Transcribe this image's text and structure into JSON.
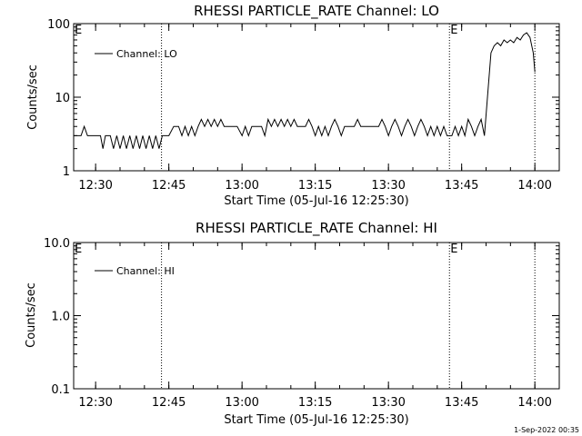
{
  "chart_data": [
    {
      "type": "line",
      "title": "RHESSI PARTICLE_RATE Channel: LO",
      "xlabel": "Start Time (05-Jul-16 12:25:30)",
      "ylabel": "Counts/sec",
      "yscale": "log",
      "ylim": [
        1,
        100
      ],
      "xlim": [
        "12:25:30",
        "14:05:00"
      ],
      "x_ticks": [
        "12:30",
        "12:45",
        "13:00",
        "13:15",
        "13:30",
        "13:45",
        "14:00"
      ],
      "y_ticks": [
        "1",
        "10",
        "100"
      ],
      "legend_label": "Channel: LO",
      "legend_position": "top-left",
      "markers": [
        {
          "label": "",
          "time": "12:43:30",
          "style": "dotted"
        },
        {
          "label": "E",
          "time": "13:42:30",
          "style": "dotted"
        },
        {
          "label": "",
          "time": "14:00:00",
          "style": "dotted"
        },
        {
          "label": "E",
          "time": "12:25:30",
          "style": "text"
        }
      ],
      "series": [
        {
          "points": [
            [
              "12:25:30",
              3
            ],
            [
              "12:27:00",
              3
            ],
            [
              "12:27:40",
              4
            ],
            [
              "12:28:20",
              3
            ],
            [
              "12:30:00",
              3
            ],
            [
              "12:31:00",
              3
            ],
            [
              "12:31:30",
              2
            ],
            [
              "12:32:00",
              3
            ],
            [
              "12:33:00",
              3
            ],
            [
              "12:33:40",
              2
            ],
            [
              "12:34:20",
              3
            ],
            [
              "12:35:00",
              2
            ],
            [
              "12:35:40",
              3
            ],
            [
              "12:36:20",
              2
            ],
            [
              "12:37:00",
              3
            ],
            [
              "12:37:40",
              2
            ],
            [
              "12:38:20",
              3
            ],
            [
              "12:39:00",
              2
            ],
            [
              "12:39:40",
              3
            ],
            [
              "12:40:20",
              2
            ],
            [
              "12:41:00",
              3
            ],
            [
              "12:41:40",
              2
            ],
            [
              "12:42:20",
              3
            ],
            [
              "12:43:00",
              2
            ],
            [
              "12:43:40",
              3
            ],
            [
              "12:45:00",
              3
            ],
            [
              "12:46:00",
              4
            ],
            [
              "12:47:00",
              4
            ],
            [
              "12:47:40",
              3
            ],
            [
              "12:48:20",
              4
            ],
            [
              "12:49:00",
              3
            ],
            [
              "12:49:40",
              4
            ],
            [
              "12:50:20",
              3
            ],
            [
              "12:51:00",
              4
            ],
            [
              "12:51:40",
              5
            ],
            [
              "12:52:20",
              4
            ],
            [
              "12:53:00",
              5
            ],
            [
              "12:53:40",
              4
            ],
            [
              "12:54:20",
              5
            ],
            [
              "12:55:00",
              4
            ],
            [
              "12:55:40",
              5
            ],
            [
              "12:56:20",
              4
            ],
            [
              "12:57:00",
              4
            ],
            [
              "12:58:00",
              4
            ],
            [
              "12:59:00",
              4
            ],
            [
              "13:00:00",
              3
            ],
            [
              "13:00:40",
              4
            ],
            [
              "13:01:20",
              3
            ],
            [
              "13:02:00",
              4
            ],
            [
              "13:03:00",
              4
            ],
            [
              "13:04:00",
              4
            ],
            [
              "13:04:40",
              3
            ],
            [
              "13:05:20",
              5
            ],
            [
              "13:06:00",
              4
            ],
            [
              "13:06:40",
              5
            ],
            [
              "13:07:20",
              4
            ],
            [
              "13:08:00",
              5
            ],
            [
              "13:08:40",
              4
            ],
            [
              "13:09:20",
              5
            ],
            [
              "13:10:00",
              4
            ],
            [
              "13:10:40",
              5
            ],
            [
              "13:11:20",
              4
            ],
            [
              "13:12:00",
              4
            ],
            [
              "13:13:00",
              4
            ],
            [
              "13:13:40",
              5
            ],
            [
              "13:14:20",
              4
            ],
            [
              "13:15:00",
              3
            ],
            [
              "13:15:40",
              4
            ],
            [
              "13:16:20",
              3
            ],
            [
              "13:17:00",
              4
            ],
            [
              "13:17:40",
              3
            ],
            [
              "13:18:20",
              4
            ],
            [
              "13:19:00",
              5
            ],
            [
              "13:19:40",
              4
            ],
            [
              "13:20:20",
              3
            ],
            [
              "13:21:00",
              4
            ],
            [
              "13:22:00",
              4
            ],
            [
              "13:23:00",
              4
            ],
            [
              "13:23:40",
              5
            ],
            [
              "13:24:20",
              4
            ],
            [
              "13:25:00",
              4
            ],
            [
              "13:26:00",
              4
            ],
            [
              "13:27:00",
              4
            ],
            [
              "13:28:00",
              4
            ],
            [
              "13:28:40",
              5
            ],
            [
              "13:29:20",
              4
            ],
            [
              "13:30:00",
              3
            ],
            [
              "13:30:40",
              4
            ],
            [
              "13:31:20",
              5
            ],
            [
              "13:32:00",
              4
            ],
            [
              "13:32:40",
              3
            ],
            [
              "13:33:20",
              4
            ],
            [
              "13:34:00",
              5
            ],
            [
              "13:34:40",
              4
            ],
            [
              "13:35:20",
              3
            ],
            [
              "13:36:00",
              4
            ],
            [
              "13:36:40",
              5
            ],
            [
              "13:37:20",
              4
            ],
            [
              "13:38:00",
              3
            ],
            [
              "13:38:40",
              4
            ],
            [
              "13:39:20",
              3
            ],
            [
              "13:40:00",
              4
            ],
            [
              "13:40:40",
              3
            ],
            [
              "13:41:20",
              4
            ],
            [
              "13:42:00",
              3
            ],
            [
              "13:43:00",
              3
            ],
            [
              "13:43:40",
              4
            ],
            [
              "13:44:20",
              3
            ],
            [
              "13:45:00",
              4
            ],
            [
              "13:45:40",
              3
            ],
            [
              "13:46:20",
              5
            ],
            [
              "13:47:00",
              4
            ],
            [
              "13:47:40",
              3
            ],
            [
              "13:48:20",
              4
            ],
            [
              "13:49:00",
              5
            ],
            [
              "13:49:40",
              3
            ],
            [
              "13:51:00",
              40
            ],
            [
              "13:51:40",
              50
            ],
            [
              "13:52:20",
              55
            ],
            [
              "13:53:00",
              50
            ],
            [
              "13:53:40",
              60
            ],
            [
              "13:54:20",
              55
            ],
            [
              "13:55:00",
              60
            ],
            [
              "13:55:40",
              55
            ],
            [
              "13:56:20",
              65
            ],
            [
              "13:57:00",
              60
            ],
            [
              "13:57:40",
              70
            ],
            [
              "13:58:20",
              75
            ],
            [
              "13:59:00",
              65
            ],
            [
              "13:59:40",
              40
            ],
            [
              "14:00:00",
              22
            ]
          ]
        }
      ]
    },
    {
      "type": "line",
      "title": "RHESSI PARTICLE_RATE Channel: HI",
      "xlabel": "Start Time (05-Jul-16 12:25:30)",
      "ylabel": "Counts/sec",
      "yscale": "log",
      "ylim": [
        0.1,
        10
      ],
      "xlim": [
        "12:25:30",
        "14:05:00"
      ],
      "x_ticks": [
        "12:30",
        "12:45",
        "13:00",
        "13:15",
        "13:30",
        "13:45",
        "14:00"
      ],
      "y_ticks": [
        "0.1",
        "1.0",
        "10.0"
      ],
      "legend_label": "Channel: HI",
      "legend_position": "top-left",
      "markers": [
        {
          "label": "",
          "time": "12:43:30",
          "style": "dotted"
        },
        {
          "label": "E",
          "time": "13:42:30",
          "style": "dotted"
        },
        {
          "label": "",
          "time": "14:00:00",
          "style": "dotted"
        },
        {
          "label": "E",
          "time": "12:25:30",
          "style": "text"
        }
      ],
      "series": [
        {
          "points": []
        }
      ]
    }
  ],
  "footer": {
    "timestamp": "1-Sep-2022 00:35"
  }
}
